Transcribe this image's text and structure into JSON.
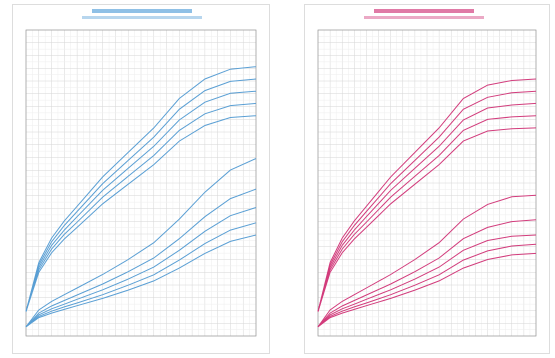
{
  "chart_data": [
    {
      "type": "line",
      "x": [
        0,
        1,
        2,
        3,
        4,
        6,
        8,
        10,
        12,
        14,
        16,
        18
      ],
      "xlim": [
        0,
        18
      ],
      "ylim": [
        0,
        100
      ],
      "grid": true,
      "series": [
        {
          "color": "#5a9fd4",
          "values": [
            8,
            24,
            32,
            37.6,
            42.4,
            52,
            60,
            68,
            77.6,
            84,
            87.2,
            88
          ]
        },
        {
          "color": "#5a9fd4",
          "values": [
            8,
            23.2,
            30.8,
            36.1,
            40.7,
            49.8,
            57.4,
            65,
            74.1,
            80.2,
            83.2,
            84
          ]
        },
        {
          "color": "#5a9fd4",
          "values": [
            8,
            22.4,
            29.6,
            34.6,
            39,
            47.6,
            54.8,
            62,
            70.6,
            76.4,
            79.3,
            80
          ]
        },
        {
          "color": "#5a9fd4",
          "values": [
            8,
            21.6,
            28.4,
            33.2,
            37.2,
            45.4,
            52.2,
            59,
            67.2,
            72.6,
            75.3,
            76
          ]
        },
        {
          "color": "#5a9fd4",
          "values": [
            8,
            20.8,
            27.2,
            31.7,
            35.5,
            43.2,
            49.6,
            56,
            63.7,
            68.8,
            71.4,
            72
          ]
        },
        {
          "color": "#5a9fd4",
          "values": [
            3,
            8.5,
            11.3,
            13.5,
            15.7,
            20.1,
            25,
            30.5,
            38.2,
            47,
            54.2,
            58
          ]
        },
        {
          "color": "#5a9fd4",
          "values": [
            3,
            7.5,
            9.8,
            11.6,
            13.4,
            17,
            21,
            25.5,
            31.8,
            39,
            44.9,
            48
          ]
        },
        {
          "color": "#5a9fd4",
          "values": [
            3,
            6.9,
            8.9,
            10.4,
            12,
            15.1,
            18.6,
            22.5,
            28,
            34.2,
            39.3,
            42
          ]
        },
        {
          "color": "#5a9fd4",
          "values": [
            3,
            6.4,
            8.1,
            9.5,
            10.8,
            13.5,
            16.6,
            20,
            24.8,
            30.2,
            34.6,
            37
          ]
        },
        {
          "color": "#5a9fd4",
          "values": [
            3,
            6,
            7.5,
            8.7,
            9.9,
            12.3,
            15,
            18,
            22.2,
            27,
            30.9,
            33
          ]
        }
      ]
    },
    {
      "type": "line",
      "x": [
        0,
        1,
        2,
        3,
        4,
        6,
        8,
        10,
        12,
        14,
        16,
        18
      ],
      "xlim": [
        0,
        18
      ],
      "ylim": [
        0,
        100
      ],
      "grid": true,
      "series": [
        {
          "color": "#d23c7c",
          "values": [
            8,
            24,
            32,
            37.6,
            42.4,
            52,
            60,
            68,
            77.6,
            82,
            83.5,
            84
          ]
        },
        {
          "color": "#d23c7c",
          "values": [
            8,
            23.2,
            30.8,
            36.1,
            40.7,
            49.8,
            57.4,
            65,
            74.1,
            78,
            79.5,
            80
          ]
        },
        {
          "color": "#d23c7c",
          "values": [
            8,
            22.4,
            29.6,
            34.6,
            39,
            47.6,
            54.8,
            62,
            70.6,
            74.5,
            75.5,
            76
          ]
        },
        {
          "color": "#d23c7c",
          "values": [
            8,
            21.6,
            28.4,
            33.2,
            37.2,
            45.4,
            52.2,
            59,
            67.2,
            70.8,
            71.6,
            72
          ]
        },
        {
          "color": "#d23c7c",
          "values": [
            8,
            20.8,
            27.2,
            31.7,
            35.5,
            43.2,
            49.6,
            56,
            63.7,
            67,
            67.7,
            68
          ]
        },
        {
          "color": "#d23c7c",
          "values": [
            3,
            8.5,
            11.3,
            13.5,
            15.7,
            20.1,
            25,
            30.5,
            38.2,
            43,
            45.5,
            46
          ]
        },
        {
          "color": "#d23c7c",
          "values": [
            3,
            7.5,
            9.8,
            11.6,
            13.4,
            17,
            21,
            25.5,
            31.8,
            35.5,
            37.4,
            38
          ]
        },
        {
          "color": "#d23c7c",
          "values": [
            3,
            6.9,
            8.9,
            10.4,
            12,
            15.1,
            18.6,
            22.5,
            28,
            31.2,
            32.6,
            33
          ]
        },
        {
          "color": "#d23c7c",
          "values": [
            3,
            6.4,
            8.1,
            9.5,
            10.8,
            13.5,
            16.6,
            20,
            24.8,
            27.8,
            29.4,
            30
          ]
        },
        {
          "color": "#d23c7c",
          "values": [
            3,
            6,
            7.5,
            8.7,
            9.9,
            12.3,
            15,
            18,
            22.2,
            25,
            26.5,
            27
          ]
        }
      ]
    }
  ]
}
